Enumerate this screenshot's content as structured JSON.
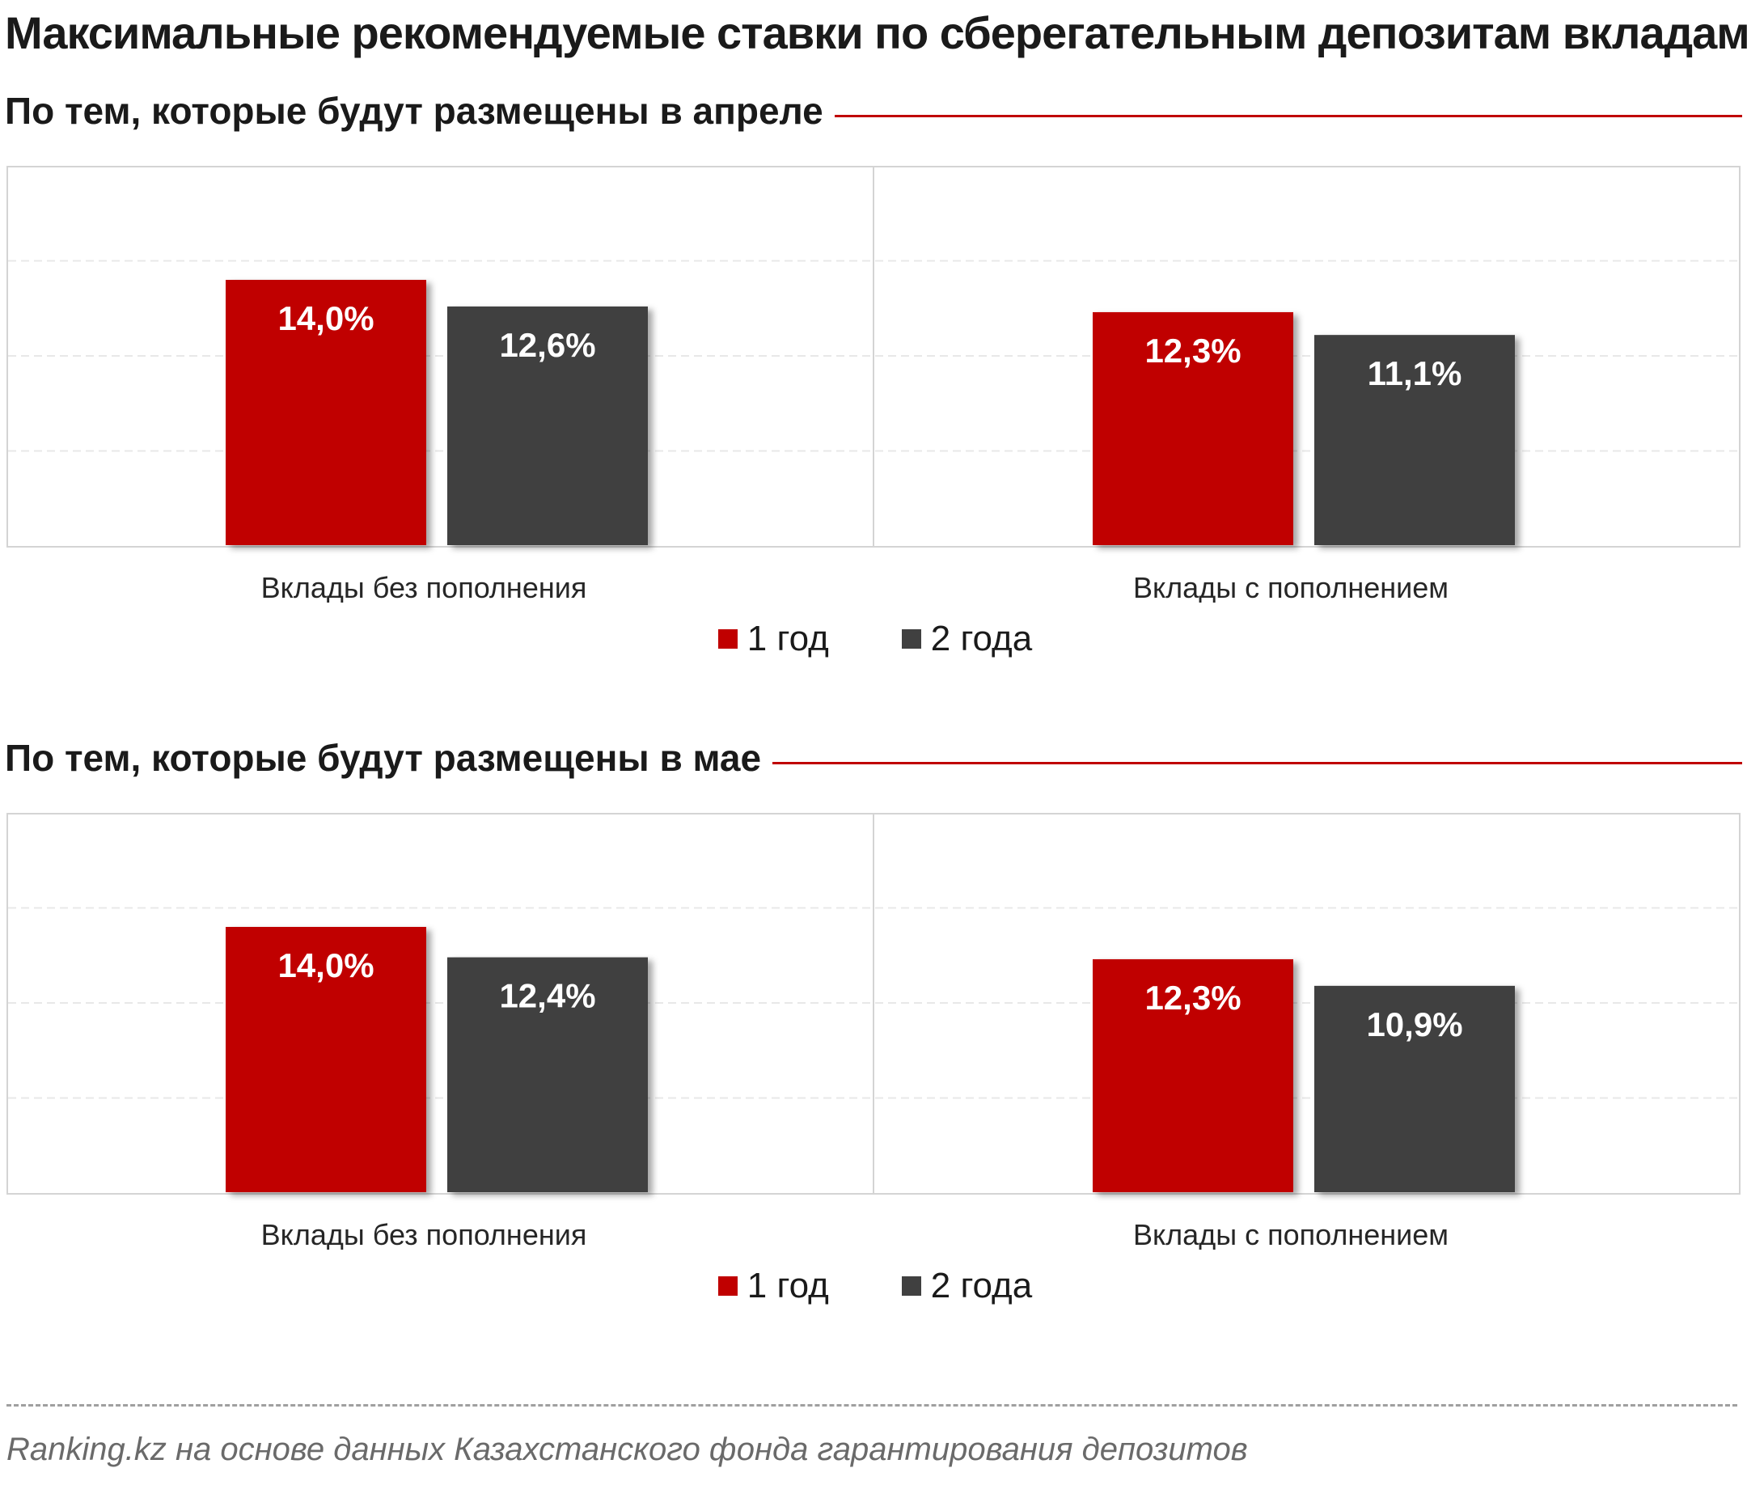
{
  "title": "Максимальные рекомендуемые ставки по сберегательным депозитам вкладам",
  "source": "Ranking.kz на основе данных Казахстанского фонда гарантирования депозитов",
  "colors": {
    "series1": "#c00000",
    "series2": "#404040",
    "accent_rule": "#c00000"
  },
  "chart_data": [
    {
      "type": "bar",
      "title": "По тем, которые будут размещены в апреле",
      "categories": [
        "Вклады без пополнения",
        "Вклады с пополнением"
      ],
      "series": [
        {
          "name": "1 год",
          "values": [
            14.0,
            12.3
          ],
          "labels": [
            "14,0%",
            "12,3%"
          ]
        },
        {
          "name": "2 года",
          "values": [
            12.6,
            11.1
          ],
          "labels": [
            "12,6%",
            "11,1%"
          ]
        }
      ],
      "ylim": [
        0,
        20
      ],
      "grid": true,
      "legend": "bottom-center"
    },
    {
      "type": "bar",
      "title": "По тем, которые будут размещены в мае",
      "categories": [
        "Вклады без пополнения",
        "Вклады с пополнением"
      ],
      "series": [
        {
          "name": "1 год",
          "values": [
            14.0,
            12.3
          ],
          "labels": [
            "14,0%",
            "12,3%"
          ]
        },
        {
          "name": "2 года",
          "values": [
            12.4,
            10.9
          ],
          "labels": [
            "12,4%",
            "10,9%"
          ]
        }
      ],
      "ylim": [
        0,
        20
      ],
      "grid": true,
      "legend": "bottom-center"
    }
  ]
}
